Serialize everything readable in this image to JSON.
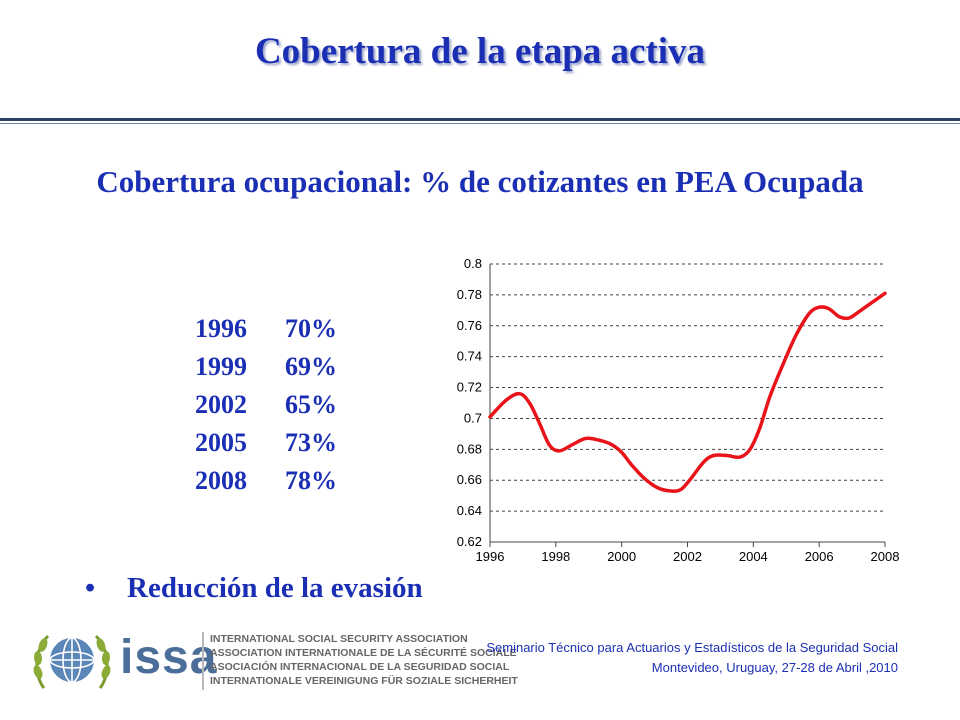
{
  "header": {
    "title": "Cobertura de la etapa activa"
  },
  "subtitle": "Cobertura ocupacional: % de cotizantes en PEA Ocupada",
  "table": [
    {
      "year": "1996",
      "pct": "70%"
    },
    {
      "year": "1999",
      "pct": "69%"
    },
    {
      "year": "2002",
      "pct": "65%"
    },
    {
      "year": "2005",
      "pct": "73%"
    },
    {
      "year": "2008",
      "pct": "78%"
    }
  ],
  "bullet": "Reducción de la evasión",
  "footer": {
    "issa_name": "issa",
    "issa_lines": [
      "INTERNATIONAL SOCIAL SECURITY ASSOCIATION",
      "ASSOCIATION INTERNATIONALE DE LA SÉCURITÉ SOCIALE",
      "ASOCIACIÓN INTERNACIONAL DE LA SEGURIDAD SOCIAL",
      "INTERNATIONALE VEREINIGUNG FÜR SOZIALE SICHERHEIT"
    ],
    "event_line1": "Seminario Técnico para Actuarios y Estadísticos de la Seguridad Social",
    "event_line2": "Montevideo, Uruguay, 27-28 de Abril ,2010"
  },
  "colors": {
    "title": "#1b2fb4",
    "series": "#e8141a",
    "issa": "#4a6d9a"
  },
  "chart_data": {
    "type": "line",
    "title": "",
    "xlabel": "",
    "ylabel": "",
    "xlim": [
      1996,
      2008
    ],
    "ylim": [
      0.62,
      0.8
    ],
    "grid": "horizontal dashed",
    "xticks": [
      "1996",
      "1998",
      "2000",
      "2002",
      "2004",
      "2006",
      "2008"
    ],
    "yticks": [
      "0.62",
      "0.64",
      "0.66",
      "0.68",
      "0.7",
      "0.72",
      "0.74",
      "0.76",
      "0.78",
      "0.8"
    ],
    "series": [
      {
        "color": "#e8141a",
        "x": [
          1996,
          1996.5,
          1996.9,
          1997.2,
          1997.5,
          1997.8,
          1998.1,
          1998.5,
          1998.9,
          1999.3,
          1999.7,
          2000.0,
          2000.3,
          2000.7,
          2001.1,
          2001.5,
          2001.8,
          2002.1,
          2002.5,
          2002.8,
          2003.2,
          2003.6,
          2003.9,
          2004.2,
          2004.5,
          2004.9,
          2005.3,
          2005.7,
          2006.0,
          2006.3,
          2006.6,
          2006.9,
          2007.2,
          2007.6,
          2008.0
        ],
        "y": [
          0.701,
          0.712,
          0.716,
          0.71,
          0.697,
          0.683,
          0.679,
          0.683,
          0.687,
          0.686,
          0.683,
          0.678,
          0.67,
          0.661,
          0.655,
          0.653,
          0.654,
          0.661,
          0.672,
          0.676,
          0.676,
          0.675,
          0.68,
          0.694,
          0.714,
          0.735,
          0.754,
          0.768,
          0.772,
          0.771,
          0.766,
          0.765,
          0.769,
          0.775,
          0.781
        ]
      }
    ]
  }
}
